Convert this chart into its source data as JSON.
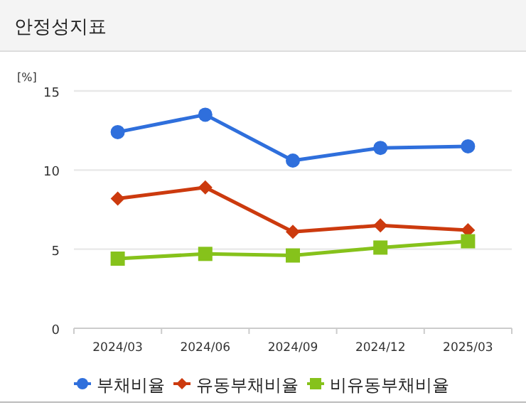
{
  "chart_data": {
    "type": "line",
    "title": "안정성지표",
    "ylabel": "[%]",
    "categories": [
      "2024/03",
      "2024/06",
      "2024/09",
      "2024/12",
      "2025/03"
    ],
    "series": [
      {
        "name": "부채비율",
        "color": "#2f6fdc",
        "marker": "circle",
        "values": [
          12.4,
          13.5,
          10.6,
          11.4,
          11.5
        ]
      },
      {
        "name": "유동부채비율",
        "color": "#cc3a0e",
        "marker": "diamond",
        "values": [
          8.2,
          8.9,
          6.1,
          6.5,
          6.2
        ]
      },
      {
        "name": "비유동부채비율",
        "color": "#86c21b",
        "marker": "square",
        "values": [
          4.4,
          4.7,
          4.6,
          5.1,
          5.5
        ]
      }
    ],
    "ylim": [
      0,
      15
    ],
    "yticks": [
      0,
      5,
      10,
      15
    ],
    "grid": "y",
    "legend": "bottom"
  }
}
